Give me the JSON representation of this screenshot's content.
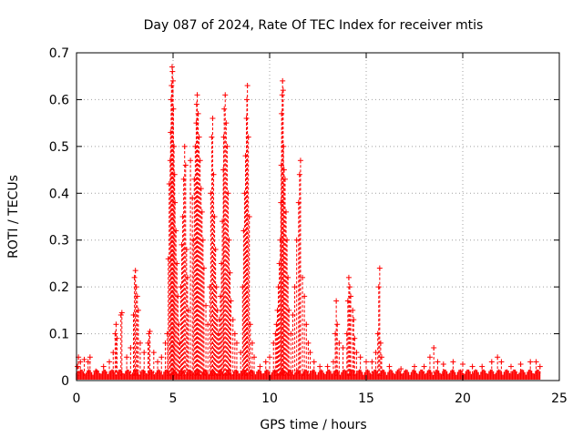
{
  "chart_data": {
    "type": "scatter",
    "title": "Day 087 of 2024, Rate Of TEC Index for receiver mtis",
    "xlabel": "GPS time / hours",
    "ylabel": "ROTI / TECUs",
    "xlim": [
      0,
      25
    ],
    "ylim": [
      0,
      0.7
    ],
    "x_ticks": [
      0,
      5,
      10,
      15,
      20,
      25
    ],
    "y_ticks": [
      0,
      0.1,
      0.2,
      0.3,
      0.4,
      0.5,
      0.6,
      0.7
    ],
    "x_tick_labels": [
      "0",
      "5",
      "10",
      "15",
      "20",
      "25"
    ],
    "y_tick_labels": [
      "0",
      "0.1",
      "0.2",
      "0.3",
      "0.4",
      "0.5",
      "0.6",
      "0.7"
    ],
    "grid": true,
    "marker": "+",
    "color": "#ff0000",
    "series": [
      {
        "points": [
          [
            0.05,
            0.03
          ],
          [
            0.1,
            0.05
          ],
          [
            0.2,
            0.04
          ],
          [
            0.4,
            0.045
          ],
          [
            0.6,
            0.04
          ],
          [
            0.7,
            0.05
          ],
          [
            1.0,
            0.02
          ],
          [
            1.4,
            0.03
          ],
          [
            1.7,
            0.04
          ],
          [
            1.9,
            0.06
          ],
          [
            2.0,
            0.1
          ],
          [
            2.05,
            0.12
          ],
          [
            2.1,
            0.09
          ],
          [
            2.3,
            0.14
          ],
          [
            2.35,
            0.145
          ],
          [
            2.6,
            0.05
          ],
          [
            2.8,
            0.07
          ],
          [
            2.95,
            0.14
          ],
          [
            3.0,
            0.22
          ],
          [
            3.05,
            0.235
          ],
          [
            3.1,
            0.2
          ],
          [
            3.15,
            0.18
          ],
          [
            3.2,
            0.15
          ],
          [
            3.3,
            0.08
          ],
          [
            3.5,
            0.06
          ],
          [
            3.7,
            0.08
          ],
          [
            3.75,
            0.1
          ],
          [
            3.8,
            0.105
          ],
          [
            4.0,
            0.06
          ],
          [
            4.2,
            0.04
          ],
          [
            4.4,
            0.05
          ],
          [
            4.6,
            0.08
          ],
          [
            4.7,
            0.1
          ],
          [
            4.75,
            0.26
          ],
          [
            4.8,
            0.42
          ],
          [
            4.85,
            0.47
          ],
          [
            4.87,
            0.53
          ],
          [
            4.9,
            0.6
          ],
          [
            4.92,
            0.63
          ],
          [
            4.95,
            0.67
          ],
          [
            4.97,
            0.66
          ],
          [
            5.0,
            0.64
          ],
          [
            5.02,
            0.58
          ],
          [
            5.05,
            0.5
          ],
          [
            5.08,
            0.44
          ],
          [
            5.1,
            0.38
          ],
          [
            5.15,
            0.32
          ],
          [
            5.2,
            0.25
          ],
          [
            5.25,
            0.18
          ],
          [
            5.3,
            0.12
          ],
          [
            5.35,
            0.08
          ],
          [
            5.4,
            0.2
          ],
          [
            5.45,
            0.29
          ],
          [
            5.5,
            0.35
          ],
          [
            5.55,
            0.43
          ],
          [
            5.6,
            0.5
          ],
          [
            5.65,
            0.46
          ],
          [
            5.7,
            0.28
          ],
          [
            5.75,
            0.22
          ],
          [
            5.8,
            0.15
          ],
          [
            5.9,
            0.47
          ],
          [
            6.0,
            0.39
          ],
          [
            6.05,
            0.3
          ],
          [
            6.1,
            0.43
          ],
          [
            6.15,
            0.5
          ],
          [
            6.2,
            0.55
          ],
          [
            6.22,
            0.59
          ],
          [
            6.25,
            0.61
          ],
          [
            6.3,
            0.57
          ],
          [
            6.35,
            0.52
          ],
          [
            6.4,
            0.47
          ],
          [
            6.45,
            0.41
          ],
          [
            6.5,
            0.36
          ],
          [
            6.55,
            0.3
          ],
          [
            6.6,
            0.24
          ],
          [
            6.7,
            0.16
          ],
          [
            6.8,
            0.12
          ],
          [
            6.9,
            0.2
          ],
          [
            6.95,
            0.4
          ],
          [
            7.0,
            0.52
          ],
          [
            7.05,
            0.56
          ],
          [
            7.1,
            0.44
          ],
          [
            7.15,
            0.35
          ],
          [
            7.2,
            0.28
          ],
          [
            7.25,
            0.2
          ],
          [
            7.3,
            0.15
          ],
          [
            7.35,
            0.1
          ],
          [
            7.4,
            0.13
          ],
          [
            7.45,
            0.18
          ],
          [
            7.5,
            0.25
          ],
          [
            7.55,
            0.34
          ],
          [
            7.6,
            0.45
          ],
          [
            7.62,
            0.52
          ],
          [
            7.65,
            0.58
          ],
          [
            7.7,
            0.61
          ],
          [
            7.75,
            0.55
          ],
          [
            7.8,
            0.5
          ],
          [
            7.85,
            0.4
          ],
          [
            7.9,
            0.3
          ],
          [
            7.95,
            0.23
          ],
          [
            8.0,
            0.17
          ],
          [
            8.1,
            0.13
          ],
          [
            8.2,
            0.1
          ],
          [
            8.3,
            0.08
          ],
          [
            8.5,
            0.06
          ],
          [
            8.6,
            0.2
          ],
          [
            8.65,
            0.32
          ],
          [
            8.7,
            0.4
          ],
          [
            8.75,
            0.48
          ],
          [
            8.8,
            0.56
          ],
          [
            8.82,
            0.6
          ],
          [
            8.85,
            0.63
          ],
          [
            8.9,
            0.52
          ],
          [
            8.95,
            0.35
          ],
          [
            9.0,
            0.12
          ],
          [
            9.1,
            0.08
          ],
          [
            9.2,
            0.05
          ],
          [
            9.5,
            0.03
          ],
          [
            9.8,
            0.04
          ],
          [
            10.0,
            0.05
          ],
          [
            10.2,
            0.08
          ],
          [
            10.3,
            0.1
          ],
          [
            10.35,
            0.12
          ],
          [
            10.4,
            0.15
          ],
          [
            10.45,
            0.2
          ],
          [
            10.5,
            0.25
          ],
          [
            10.55,
            0.3
          ],
          [
            10.58,
            0.38
          ],
          [
            10.6,
            0.46
          ],
          [
            10.62,
            0.57
          ],
          [
            10.65,
            0.61
          ],
          [
            10.67,
            0.64
          ],
          [
            10.7,
            0.62
          ],
          [
            10.72,
            0.5
          ],
          [
            10.75,
            0.45
          ],
          [
            10.8,
            0.43
          ],
          [
            10.85,
            0.36
          ],
          [
            10.9,
            0.3
          ],
          [
            10.95,
            0.22
          ],
          [
            11.0,
            0.15
          ],
          [
            11.1,
            0.1
          ],
          [
            11.2,
            0.14
          ],
          [
            11.3,
            0.2
          ],
          [
            11.4,
            0.3
          ],
          [
            11.5,
            0.38
          ],
          [
            11.55,
            0.44
          ],
          [
            11.6,
            0.47
          ],
          [
            11.7,
            0.22
          ],
          [
            11.8,
            0.18
          ],
          [
            11.9,
            0.12
          ],
          [
            12.0,
            0.08
          ],
          [
            12.1,
            0.06
          ],
          [
            12.3,
            0.04
          ],
          [
            12.6,
            0.03
          ],
          [
            13.0,
            0.03
          ],
          [
            13.3,
            0.04
          ],
          [
            13.4,
            0.1
          ],
          [
            13.45,
            0.17
          ],
          [
            13.5,
            0.12
          ],
          [
            13.6,
            0.08
          ],
          [
            13.8,
            0.07
          ],
          [
            14.0,
            0.1
          ],
          [
            14.05,
            0.17
          ],
          [
            14.1,
            0.22
          ],
          [
            14.15,
            0.2
          ],
          [
            14.2,
            0.18
          ],
          [
            14.3,
            0.15
          ],
          [
            14.35,
            0.13
          ],
          [
            14.4,
            0.09
          ],
          [
            14.5,
            0.06
          ],
          [
            14.7,
            0.05
          ],
          [
            15.0,
            0.04
          ],
          [
            15.3,
            0.04
          ],
          [
            15.5,
            0.06
          ],
          [
            15.6,
            0.1
          ],
          [
            15.65,
            0.2
          ],
          [
            15.7,
            0.24
          ],
          [
            15.75,
            0.08
          ],
          [
            15.8,
            0.05
          ],
          [
            16.2,
            0.03
          ],
          [
            16.8,
            0.025
          ],
          [
            17.5,
            0.03
          ],
          [
            18.0,
            0.03
          ],
          [
            18.3,
            0.05
          ],
          [
            18.5,
            0.07
          ],
          [
            18.7,
            0.04
          ],
          [
            19.0,
            0.035
          ],
          [
            19.5,
            0.04
          ],
          [
            20.0,
            0.035
          ],
          [
            20.5,
            0.03
          ],
          [
            21.0,
            0.03
          ],
          [
            21.5,
            0.04
          ],
          [
            21.8,
            0.05
          ],
          [
            22.0,
            0.04
          ],
          [
            22.5,
            0.03
          ],
          [
            23.0,
            0.035
          ],
          [
            23.5,
            0.04
          ],
          [
            23.8,
            0.04
          ],
          [
            24.0,
            0.03
          ]
        ]
      }
    ]
  }
}
